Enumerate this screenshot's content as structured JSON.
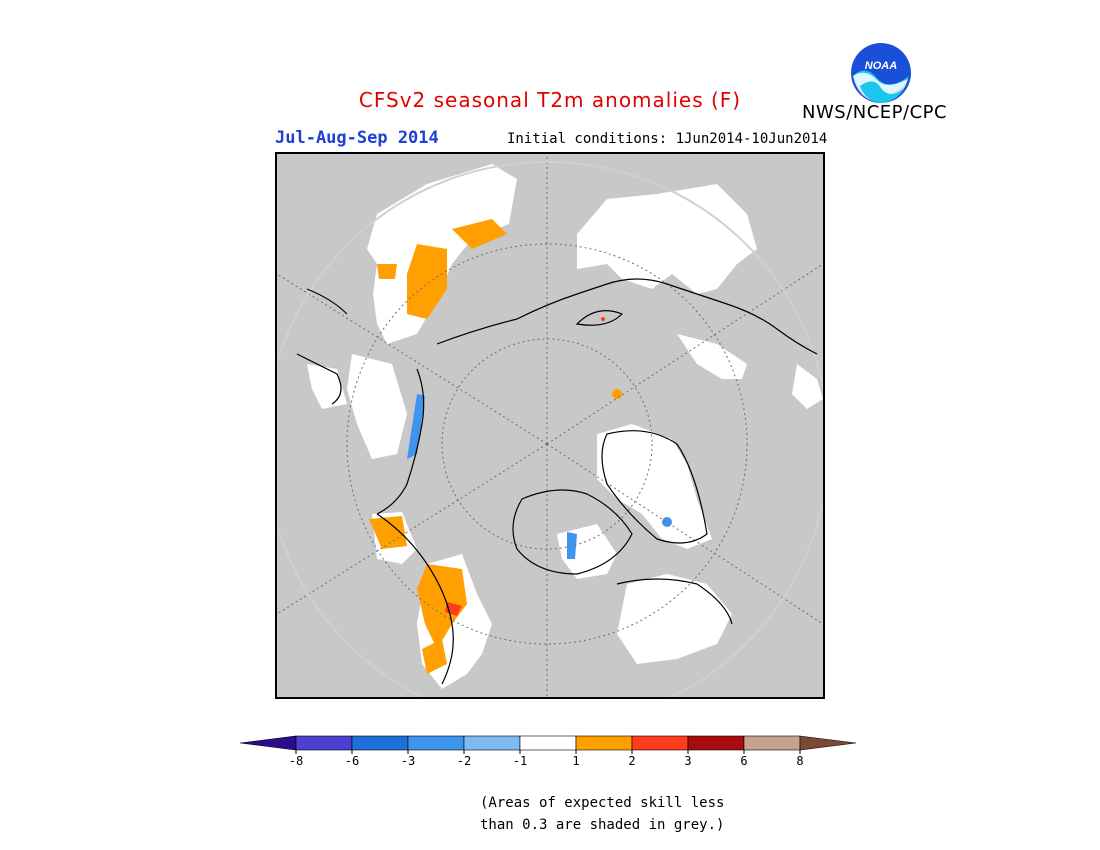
{
  "header": {
    "title": "CFSv2 seasonal T2m anomalies (F)",
    "title_color": "#e00000",
    "season": "Jul-Aug-Sep 2014",
    "season_color": "#1f3fd6",
    "initial_conditions": "Initial conditions: 1Jun2014-10Jun2014",
    "agency": "NWS/NCEP/CPC",
    "logo_text": "NOAA"
  },
  "legend": {
    "colors": [
      "#2a0c8c",
      "#4d3fd0",
      "#1f6fd8",
      "#3f95ee",
      "#7fbaf0",
      "#ffffff",
      "#ffa000",
      "#ff3c1e",
      "#a80c0c",
      "#c8a290",
      "#7a4a36"
    ],
    "tick_labels": [
      "-8",
      "-6",
      "-3",
      "-2",
      "-1",
      "1",
      "2",
      "3",
      "6",
      "8"
    ]
  },
  "map": {
    "skill_mask_color": "#c8c8c8",
    "neutral_color": "#ffffff"
  },
  "footnote": {
    "line1": "(Areas of expected skill less",
    "line2": "than 0.3 are shaded in grey.)"
  }
}
